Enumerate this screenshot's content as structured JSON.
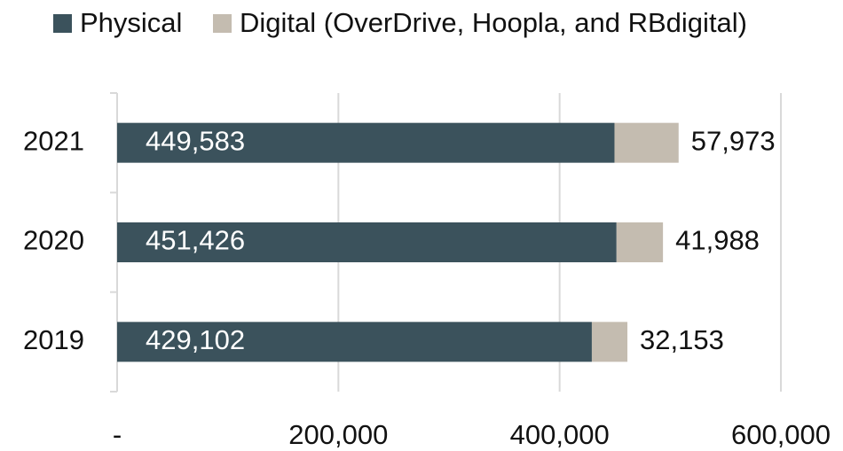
{
  "chart_data": {
    "type": "stacked-barh",
    "categories": [
      "2021",
      "2020",
      "2019"
    ],
    "series": [
      {
        "name": "Physical",
        "color": "#3b525c",
        "values": [
          449583,
          451426,
          429102
        ],
        "value_labels": [
          "449,583",
          "451,426",
          "429,102"
        ]
      },
      {
        "name": "Digital (OverDrive, Hoopla, and RBdigital)",
        "color": "#c4bcb0",
        "values": [
          57973,
          41988,
          32153
        ],
        "value_labels": [
          "57,973",
          "41,988",
          "32,153"
        ]
      }
    ],
    "xlim": [
      0,
      600000
    ],
    "xticks": [
      {
        "value": 0,
        "label": "-"
      },
      {
        "value": 200000,
        "label": "200,000"
      },
      {
        "value": 400000,
        "label": "400,000"
      },
      {
        "value": 600000,
        "label": "600,000"
      }
    ],
    "grid": true
  }
}
